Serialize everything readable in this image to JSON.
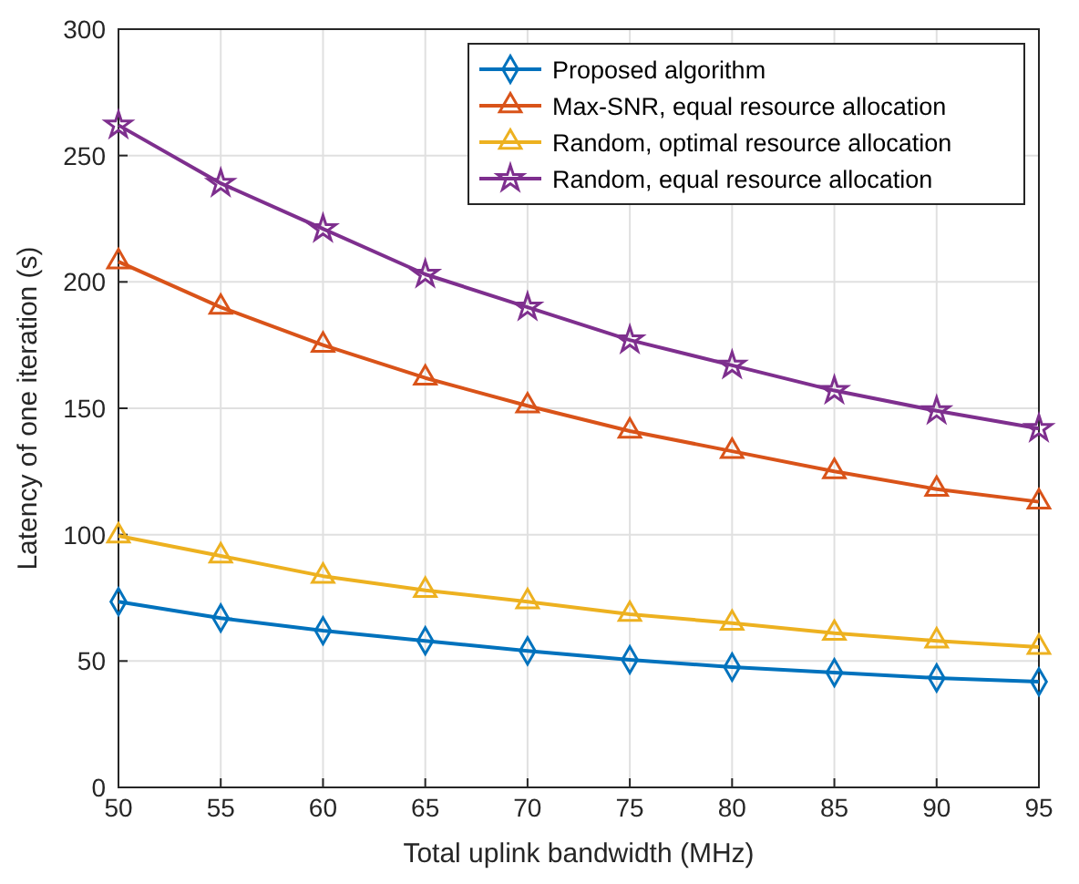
{
  "chart_data": {
    "type": "line",
    "xlabel": "Total uplink bandwidth (MHz)",
    "ylabel": "Latency of one iteration (s)",
    "x": [
      50,
      55,
      60,
      65,
      70,
      75,
      80,
      85,
      90,
      95
    ],
    "xlim": [
      50,
      95
    ],
    "xticks": [
      50,
      55,
      60,
      65,
      70,
      75,
      80,
      85,
      90,
      95
    ],
    "ylim": [
      0,
      300
    ],
    "yticks": [
      0,
      50,
      100,
      150,
      200,
      250,
      300
    ],
    "grid": true,
    "legend": "top right",
    "series": [
      {
        "name": "Proposed algorithm",
        "color": "#0072bd",
        "marker": "diamond",
        "values": [
          73.5,
          67,
          62,
          58,
          54,
          50.5,
          47.6,
          45.4,
          43.3,
          41.8
        ]
      },
      {
        "name": "Max-SNR, equal resource allocation",
        "color": "#d95319",
        "marker": "triangle",
        "values": [
          208,
          190,
          175,
          162,
          151,
          141,
          133,
          125,
          118,
          113
        ]
      },
      {
        "name": "Random, optimal resource allocation",
        "color": "#edb120",
        "marker": "triangle",
        "values": [
          99.5,
          91.6,
          83.6,
          78,
          73.5,
          68.5,
          65,
          61,
          58,
          55.5
        ]
      },
      {
        "name": "Random, equal resource allocation",
        "color": "#7e2f8e",
        "marker": "star",
        "values": [
          262,
          239,
          221,
          203,
          190,
          177,
          167,
          157,
          149,
          142
        ]
      }
    ]
  }
}
